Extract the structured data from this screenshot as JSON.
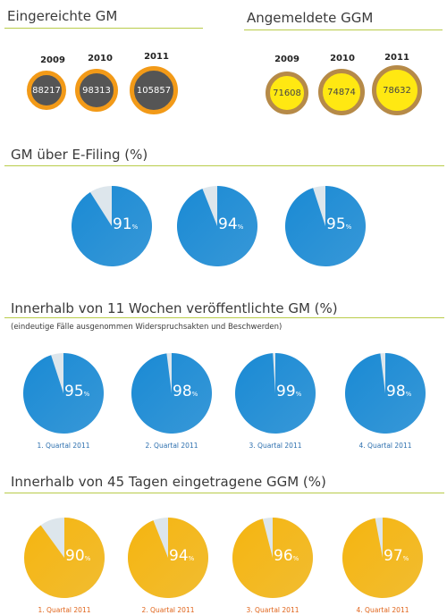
{
  "chart_data": [
    {
      "type": "bubble",
      "title": "Eingereichte GM",
      "categories": [
        "2009",
        "2010",
        "2011"
      ],
      "values": [
        88217,
        98313,
        105857
      ],
      "colors": {
        "fill": "#555555",
        "ring": "#f29a18"
      }
    },
    {
      "type": "bubble",
      "title": "Angemeldete GGM",
      "categories": [
        "2009",
        "2010",
        "2011"
      ],
      "values": [
        71608,
        74874,
        78632
      ],
      "colors": {
        "fill": "#ffe812",
        "ring": "#b68a48"
      }
    },
    {
      "type": "pie",
      "title": "GM über E-Filing (%)",
      "values": [
        91,
        94,
        95
      ],
      "unit": "%",
      "colors": {
        "main": "#1a8ad4",
        "rest": "#dde6ec"
      }
    },
    {
      "type": "pie",
      "title": "Innerhalb von 11 Wochen veröffentlichte GM (%)",
      "subtitle": "(eindeutige Fälle ausgenommen Widerspruchsakten und Beschwerden)",
      "categories": [
        "1. Quartal 2011",
        "2. Quartal 2011",
        "3. Quartal 2011",
        "4. Quartal 2011"
      ],
      "values": [
        95,
        98,
        99,
        98
      ],
      "unit": "%",
      "colors": {
        "main": "#1a8ad4",
        "rest": "#dde6ec",
        "label": "#2c6fae"
      }
    },
    {
      "type": "pie",
      "title": "Innerhalb von 45 Tagen eingetragene GGM (%)",
      "categories": [
        "1. Quartal 2011",
        "2. Quartal 2011",
        "3. Quartal 2011",
        "4. Quartal 2011"
      ],
      "values": [
        90,
        94,
        96,
        97
      ],
      "unit": "%",
      "colors": {
        "main": "#f5b510",
        "rest": "#dde6ec",
        "label": "#e0641a"
      }
    }
  ]
}
